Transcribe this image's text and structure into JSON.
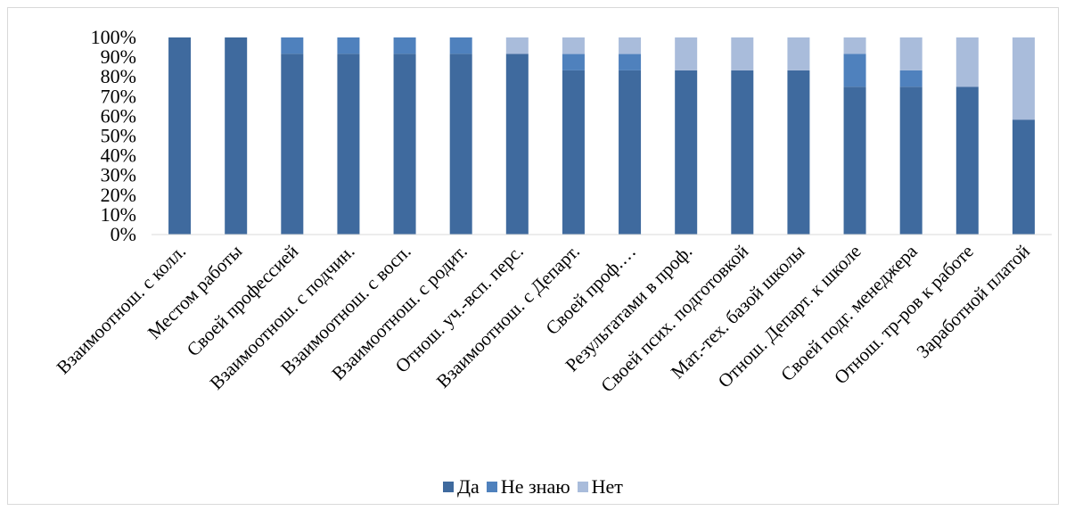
{
  "chart_data": {
    "type": "bar",
    "stacked": true,
    "percent": true,
    "ylim": [
      0,
      100
    ],
    "y_ticks": [
      "0%",
      "10%",
      "20%",
      "30%",
      "40%",
      "50%",
      "60%",
      "70%",
      "80%",
      "90%",
      "100%"
    ],
    "grid": false,
    "legend_position": "bottom",
    "categories": [
      "Взаимоотнош. с колл.",
      "Местом работы",
      "Своей профессией",
      "Взаимоотнош. с подчин.",
      "Взаимоотнош. с восп.",
      "Взаимоотнош. с родит.",
      "Отнош. уч.-всп. перс.",
      "Взаимоотнош. с Департ.",
      "Своей проф.…",
      "Результатами в проф.",
      "Своей псих. подготовкой",
      "Мат.-тех. базой школы",
      "Отнош. Департ. к школе",
      "Своей подг. менеджера",
      "Отнош. тр-ров к работе",
      "Заработной платой"
    ],
    "series": [
      {
        "name": "Да",
        "color": "#3f6a9e",
        "values": [
          100,
          100,
          91.7,
          91.7,
          91.7,
          91.7,
          91.7,
          83.3,
          83.3,
          83.3,
          83.3,
          83.3,
          75,
          75,
          75,
          58.3
        ]
      },
      {
        "name": "Не знаю",
        "color": "#4f81bd",
        "values": [
          0,
          0,
          8.3,
          8.3,
          8.3,
          8.3,
          0,
          8.3,
          8.3,
          0,
          0,
          0,
          16.7,
          8.3,
          0,
          0
        ]
      },
      {
        "name": "Нет",
        "color": "#a9bcdb",
        "values": [
          0,
          0,
          0,
          0,
          0,
          0,
          8.3,
          8.4,
          8.4,
          16.7,
          16.7,
          16.7,
          8.3,
          16.7,
          25,
          41.7
        ]
      }
    ]
  }
}
